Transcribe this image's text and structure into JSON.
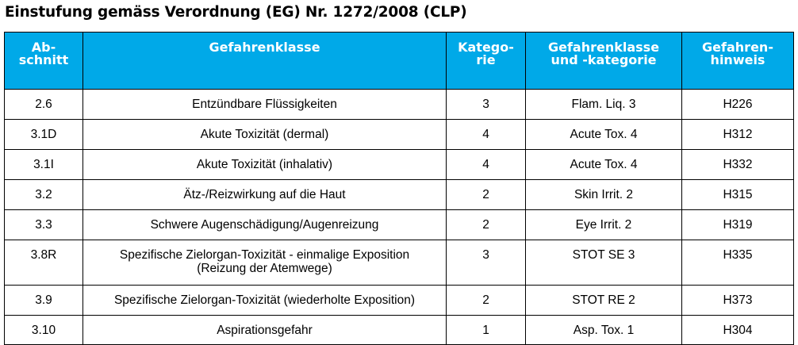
{
  "title": "Einstufung gemäss Verordnung (EG) Nr. 1272/2008 (CLP)",
  "colors": {
    "header_background": "#00a9e8",
    "header_text": "#ffffff",
    "border": "#000000"
  },
  "table": {
    "headers": {
      "abschnitt": "Ab-\nschnitt",
      "gefahrenklasse": "Gefahrenklasse",
      "kategorie": "Katego-\nrie",
      "klasse_kategorie": "Gefahrenklasse\nund -kategorie",
      "hinweis": "Gefahren-\nhinweis"
    },
    "rows": [
      {
        "abschnitt": "2.6",
        "gefahrenklasse": "Entzündbare Flüssigkeiten",
        "kategorie": "3",
        "klasse_kategorie": "Flam. Liq. 3",
        "hinweis": "H226"
      },
      {
        "abschnitt": "3.1D",
        "gefahrenklasse": "Akute Toxizität (dermal)",
        "kategorie": "4",
        "klasse_kategorie": "Acute Tox. 4",
        "hinweis": "H312"
      },
      {
        "abschnitt": "3.1I",
        "gefahrenklasse": "Akute Toxizität (inhalativ)",
        "kategorie": "4",
        "klasse_kategorie": "Acute Tox. 4",
        "hinweis": "H332"
      },
      {
        "abschnitt": "3.2",
        "gefahrenklasse": "Ätz-/Reizwirkung auf die Haut",
        "kategorie": "2",
        "klasse_kategorie": "Skin Irrit. 2",
        "hinweis": "H315"
      },
      {
        "abschnitt": "3.3",
        "gefahrenklasse": "Schwere Augenschädigung/Augenreizung",
        "kategorie": "2",
        "klasse_kategorie": "Eye Irrit. 2",
        "hinweis": "H319"
      },
      {
        "abschnitt": "3.8R",
        "gefahrenklasse": "Spezifische Zielorgan-Toxizität - einmalige Exposition\n(Reizung der Atemwege)",
        "kategorie": "3",
        "klasse_kategorie": "STOT SE 3",
        "hinweis": "H335"
      },
      {
        "abschnitt": "3.9",
        "gefahrenklasse": "Spezifische Zielorgan-Toxizität (wiederholte Exposition)",
        "kategorie": "2",
        "klasse_kategorie": "STOT RE 2",
        "hinweis": "H373"
      },
      {
        "abschnitt": "3.10",
        "gefahrenklasse": "Aspirationsgefahr",
        "kategorie": "1",
        "klasse_kategorie": "Asp. Tox. 1",
        "hinweis": "H304"
      }
    ]
  }
}
